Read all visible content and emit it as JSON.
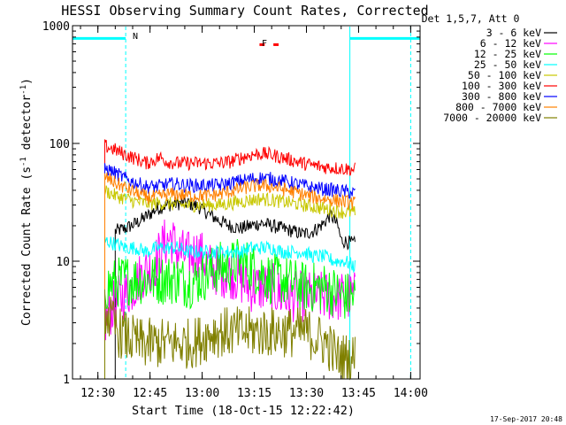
{
  "chart_data": {
    "type": "line",
    "title": "HESSI Observing Summary Count Rates, Corrected",
    "xlabel": "Start Time (18-Oct-15 12:22:42)",
    "ylabel": "Corrected Count Rate (s",
    "ylabel_sup1": "-1",
    "ylabel_mid": " detector",
    "ylabel_sup2": "-1",
    "ylabel_end": ")",
    "yscale": "log",
    "ylim": [
      1,
      1000
    ],
    "xlim_minutes_after_1200": [
      22.7,
      122.7
    ],
    "x_ticks": [
      {
        "label": "12:30",
        "t": 30
      },
      {
        "label": "12:45",
        "t": 45
      },
      {
        "label": "13:00",
        "t": 60
      },
      {
        "label": "13:15",
        "t": 75
      },
      {
        "label": "13:30",
        "t": 90
      },
      {
        "label": "13:45",
        "t": 105
      },
      {
        "label": "14:00",
        "t": 120
      }
    ],
    "y_ticks": [
      {
        "label": "1",
        "v": 1
      },
      {
        "label": "10",
        "v": 10
      },
      {
        "label": "100",
        "v": 100
      },
      {
        "label": "1000",
        "v": 1000
      }
    ],
    "legend_header": "Det 1,5,7, Att 0",
    "legend_placement": "right",
    "series": [
      {
        "name": "3 - 6 keV",
        "color": "#000000",
        "points": [
          [
            35,
            18
          ],
          [
            38,
            19
          ],
          [
            41,
            21
          ],
          [
            44,
            24
          ],
          [
            47,
            28
          ],
          [
            50,
            30
          ],
          [
            53,
            31
          ],
          [
            56,
            31
          ],
          [
            59,
            29
          ],
          [
            62,
            25
          ],
          [
            65,
            22
          ],
          [
            68,
            20
          ],
          [
            71,
            19
          ],
          [
            74,
            20
          ],
          [
            77,
            21
          ],
          [
            80,
            20
          ],
          [
            83,
            19
          ],
          [
            86,
            18
          ],
          [
            89,
            17
          ],
          [
            92,
            18
          ],
          [
            95,
            21
          ],
          [
            97,
            25
          ],
          [
            99,
            20
          ],
          [
            100,
            15
          ],
          [
            104,
            14
          ]
        ]
      },
      {
        "name": "6 - 12 keV",
        "color": "#ff00ff",
        "points": [
          [
            32,
            3
          ],
          [
            34,
            4
          ],
          [
            37,
            5
          ],
          [
            40,
            6
          ],
          [
            43,
            8
          ],
          [
            46,
            9
          ],
          [
            49,
            14
          ],
          [
            51,
            16
          ],
          [
            53,
            12
          ],
          [
            56,
            11
          ],
          [
            59,
            12
          ],
          [
            62,
            9
          ],
          [
            65,
            8
          ],
          [
            68,
            8
          ],
          [
            71,
            7
          ],
          [
            74,
            6
          ],
          [
            77,
            6
          ],
          [
            80,
            6
          ],
          [
            83,
            5
          ],
          [
            86,
            5
          ],
          [
            89,
            5
          ],
          [
            92,
            5
          ],
          [
            95,
            5
          ],
          [
            98,
            5
          ],
          [
            101,
            5
          ],
          [
            104,
            5
          ]
        ]
      },
      {
        "name": "12 - 25 keV",
        "color": "#00ff00",
        "points": [
          [
            32,
            6
          ],
          [
            35,
            6.5
          ],
          [
            38,
            7
          ],
          [
            41,
            7
          ],
          [
            44,
            7
          ],
          [
            47,
            7
          ],
          [
            50,
            7
          ],
          [
            53,
            7
          ],
          [
            56,
            6.5
          ],
          [
            59,
            7
          ],
          [
            62,
            8
          ],
          [
            65,
            9
          ],
          [
            68,
            9
          ],
          [
            71,
            10
          ],
          [
            74,
            9
          ],
          [
            77,
            8
          ],
          [
            80,
            7
          ],
          [
            83,
            7
          ],
          [
            86,
            6.5
          ],
          [
            89,
            6
          ],
          [
            92,
            6
          ],
          [
            95,
            6
          ],
          [
            98,
            5.5
          ],
          [
            101,
            5
          ],
          [
            104,
            5
          ]
        ]
      },
      {
        "name": "25 - 50 keV",
        "color": "#00ffff",
        "points": [
          [
            32,
            15
          ],
          [
            35,
            14
          ],
          [
            38,
            13
          ],
          [
            41,
            13
          ],
          [
            44,
            12
          ],
          [
            47,
            13
          ],
          [
            50,
            13
          ],
          [
            53,
            13
          ],
          [
            56,
            12
          ],
          [
            59,
            12
          ],
          [
            62,
            12
          ],
          [
            65,
            12
          ],
          [
            68,
            12
          ],
          [
            71,
            12
          ],
          [
            74,
            13
          ],
          [
            77,
            13
          ],
          [
            80,
            13
          ],
          [
            83,
            12
          ],
          [
            86,
            12
          ],
          [
            89,
            12
          ],
          [
            92,
            11
          ],
          [
            95,
            11
          ],
          [
            98,
            10
          ],
          [
            101,
            10
          ],
          [
            104,
            9
          ]
        ]
      },
      {
        "name": "50 - 100 keV",
        "color": "#c8c800",
        "points": [
          [
            32,
            40
          ],
          [
            35,
            36
          ],
          [
            38,
            34
          ],
          [
            41,
            32
          ],
          [
            44,
            31
          ],
          [
            47,
            31
          ],
          [
            50,
            31
          ],
          [
            53,
            30
          ],
          [
            56,
            30
          ],
          [
            59,
            30
          ],
          [
            62,
            30
          ],
          [
            65,
            30
          ],
          [
            68,
            31
          ],
          [
            71,
            32
          ],
          [
            74,
            33
          ],
          [
            77,
            34
          ],
          [
            80,
            33
          ],
          [
            83,
            32
          ],
          [
            86,
            31
          ],
          [
            89,
            30
          ],
          [
            92,
            29
          ],
          [
            95,
            28
          ],
          [
            98,
            27
          ],
          [
            101,
            26
          ],
          [
            104,
            26
          ]
        ]
      },
      {
        "name": "100 - 300 keV",
        "color": "#ff0000",
        "points": [
          [
            32,
            95
          ],
          [
            35,
            88
          ],
          [
            38,
            80
          ],
          [
            41,
            74
          ],
          [
            44,
            68
          ],
          [
            46,
            72
          ],
          [
            48,
            76
          ],
          [
            50,
            70
          ],
          [
            53,
            68
          ],
          [
            56,
            68
          ],
          [
            59,
            68
          ],
          [
            62,
            68
          ],
          [
            65,
            68
          ],
          [
            68,
            70
          ],
          [
            71,
            75
          ],
          [
            74,
            80
          ],
          [
            77,
            82
          ],
          [
            80,
            80
          ],
          [
            83,
            76
          ],
          [
            86,
            72
          ],
          [
            89,
            68
          ],
          [
            92,
            65
          ],
          [
            95,
            63
          ],
          [
            98,
            62
          ],
          [
            101,
            61
          ],
          [
            104,
            60
          ]
        ]
      },
      {
        "name": "300 - 800 keV",
        "color": "#0000ff",
        "points": [
          [
            32,
            62
          ],
          [
            35,
            56
          ],
          [
            38,
            50
          ],
          [
            41,
            46
          ],
          [
            44,
            43
          ],
          [
            47,
            43
          ],
          [
            50,
            45
          ],
          [
            53,
            45
          ],
          [
            56,
            44
          ],
          [
            59,
            44
          ],
          [
            62,
            44
          ],
          [
            65,
            44
          ],
          [
            68,
            46
          ],
          [
            71,
            48
          ],
          [
            74,
            50
          ],
          [
            77,
            51
          ],
          [
            80,
            50
          ],
          [
            83,
            48
          ],
          [
            86,
            46
          ],
          [
            89,
            44
          ],
          [
            92,
            42
          ],
          [
            95,
            41
          ],
          [
            98,
            40
          ],
          [
            101,
            39
          ],
          [
            104,
            38
          ]
        ]
      },
      {
        "name": "800 - 7000 keV",
        "color": "#ff8000",
        "points": [
          [
            32,
            52
          ],
          [
            35,
            46
          ],
          [
            38,
            42
          ],
          [
            41,
            38
          ],
          [
            44,
            35
          ],
          [
            47,
            35
          ],
          [
            50,
            37
          ],
          [
            53,
            37
          ],
          [
            56,
            36
          ],
          [
            59,
            36
          ],
          [
            62,
            36
          ],
          [
            65,
            37
          ],
          [
            68,
            39
          ],
          [
            71,
            41
          ],
          [
            74,
            43
          ],
          [
            77,
            44
          ],
          [
            80,
            43
          ],
          [
            83,
            41
          ],
          [
            86,
            39
          ],
          [
            89,
            37
          ],
          [
            92,
            35
          ],
          [
            95,
            34
          ],
          [
            98,
            33
          ],
          [
            101,
            32
          ],
          [
            104,
            31
          ]
        ]
      },
      {
        "name": "7000 - 20000 keV",
        "color": "#808000",
        "points": [
          [
            32,
            4
          ],
          [
            34,
            3
          ],
          [
            36,
            2.5
          ],
          [
            39,
            2.2
          ],
          [
            42,
            2
          ],
          [
            45,
            2
          ],
          [
            48,
            2
          ],
          [
            51,
            2
          ],
          [
            54,
            2
          ],
          [
            57,
            2
          ],
          [
            60,
            2.2
          ],
          [
            63,
            2.5
          ],
          [
            66,
            2.5
          ],
          [
            69,
            2.5
          ],
          [
            72,
            2.5
          ],
          [
            75,
            2.5
          ],
          [
            78,
            2.5
          ],
          [
            81,
            2.5
          ],
          [
            84,
            2.5
          ],
          [
            87,
            2.5
          ],
          [
            90,
            2.5
          ],
          [
            93,
            2.2
          ],
          [
            96,
            2
          ],
          [
            99,
            1.5
          ],
          [
            102,
            1.5
          ],
          [
            104,
            1.5
          ]
        ]
      }
    ],
    "annotations": [
      {
        "text": "N",
        "color": "#00ffff"
      },
      {
        "text": "F",
        "color": "#ff0000"
      }
    ],
    "night_segments": [
      [
        22.7,
        38
      ],
      [
        102.5,
        122.7
      ]
    ],
    "vertical_markers_t": [
      38,
      102.5,
      120
    ],
    "flare_segments": [
      [
        76.5,
        78
      ],
      [
        80.5,
        82
      ]
    ]
  },
  "footer": {
    "timestamp": "17-Sep-2017 20:48"
  }
}
